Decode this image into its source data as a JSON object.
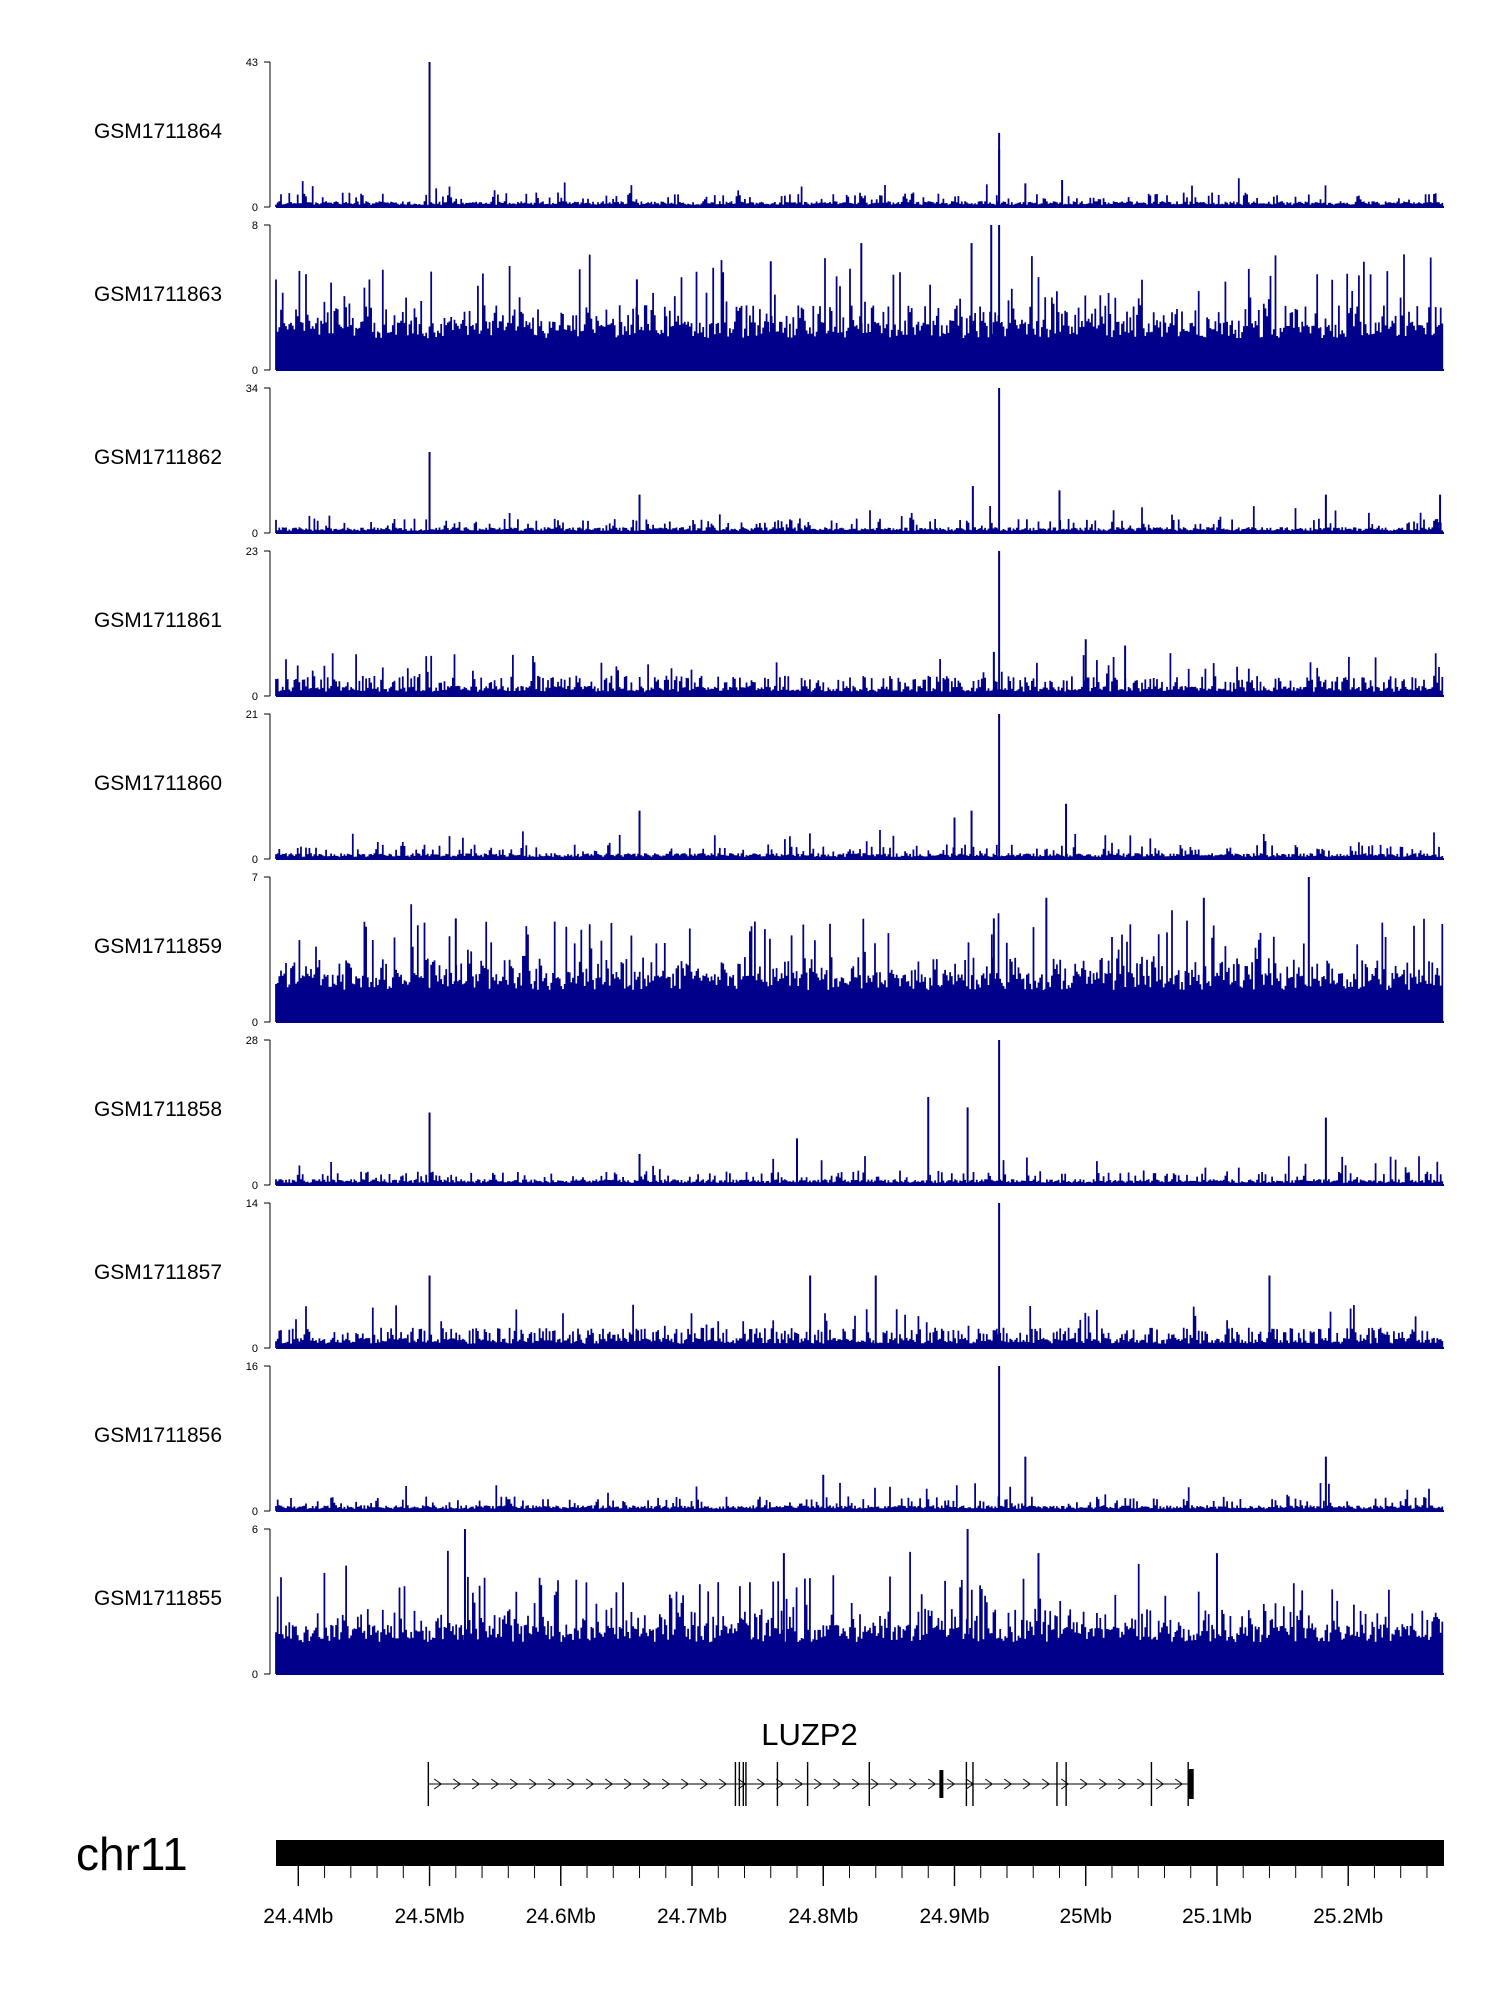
{
  "chart_data": {
    "type": "bar",
    "chromosome": "chr11",
    "region_start_mb": 24.383,
    "region_end_mb": 25.273,
    "genomic_axis": {
      "ticks": [
        {
          "pos": 24.4,
          "label": "24.4Mb"
        },
        {
          "pos": 24.5,
          "label": "24.5Mb"
        },
        {
          "pos": 24.6,
          "label": "24.6Mb"
        },
        {
          "pos": 24.7,
          "label": "24.7Mb"
        },
        {
          "pos": 24.8,
          "label": "24.8Mb"
        },
        {
          "pos": 24.9,
          "label": "24.9Mb"
        },
        {
          "pos": 25.0,
          "label": "25Mb"
        },
        {
          "pos": 25.1,
          "label": "25.1Mb"
        },
        {
          "pos": 25.2,
          "label": "25.2Mb"
        }
      ],
      "minor_tick_step_mb": 0.02
    },
    "tracks": [
      {
        "name": "GSM1711864",
        "ymin": 0,
        "ymax": 43,
        "ymin_label": "0",
        "ymax_label": "43",
        "profile": "sparse",
        "peaks": [
          {
            "pos": 24.5,
            "value": 43
          },
          {
            "pos": 24.934,
            "value": 22
          },
          {
            "pos": 24.934,
            "value": 17
          },
          {
            "pos": 24.982,
            "value": 8
          },
          {
            "pos": 24.954,
            "value": 7
          }
        ]
      },
      {
        "name": "GSM1711863",
        "ymin": 0,
        "ymax": 8,
        "ymin_label": "0",
        "ymax_label": "8",
        "profile": "dense",
        "peaks": [
          {
            "pos": 24.928,
            "value": 8
          },
          {
            "pos": 24.934,
            "value": 8
          },
          {
            "pos": 24.829,
            "value": 7
          },
          {
            "pos": 24.76,
            "value": 6
          },
          {
            "pos": 24.913,
            "value": 7
          },
          {
            "pos": 24.658,
            "value": 5
          }
        ]
      },
      {
        "name": "GSM1711862",
        "ymin": 0,
        "ymax": 34,
        "ymin_label": "0",
        "ymax_label": "34",
        "profile": "sparse",
        "peaks": [
          {
            "pos": 24.5,
            "value": 19
          },
          {
            "pos": 24.934,
            "value": 34
          },
          {
            "pos": 24.914,
            "value": 11
          },
          {
            "pos": 24.98,
            "value": 10
          },
          {
            "pos": 24.66,
            "value": 9
          },
          {
            "pos": 25.183,
            "value": 9
          },
          {
            "pos": 25.27,
            "value": 9
          }
        ]
      },
      {
        "name": "GSM1711861",
        "ymin": 0,
        "ymax": 23,
        "ymin_label": "0",
        "ymax_label": "23",
        "profile": "medium",
        "peaks": [
          {
            "pos": 24.934,
            "value": 23
          },
          {
            "pos": 25.0,
            "value": 9
          },
          {
            "pos": 25.03,
            "value": 8
          },
          {
            "pos": 24.93,
            "value": 7
          }
        ]
      },
      {
        "name": "GSM1711860",
        "ymin": 0,
        "ymax": 21,
        "ymin_label": "0",
        "ymax_label": "21",
        "profile": "sparse",
        "peaks": [
          {
            "pos": 24.934,
            "value": 21
          },
          {
            "pos": 24.985,
            "value": 8
          },
          {
            "pos": 24.66,
            "value": 7
          },
          {
            "pos": 24.913,
            "value": 7
          },
          {
            "pos": 24.9,
            "value": 6
          }
        ]
      },
      {
        "name": "GSM1711859",
        "ymin": 0,
        "ymax": 7,
        "ymin_label": "0",
        "ymax_label": "7",
        "profile": "dense",
        "peaks": [
          {
            "pos": 25.17,
            "value": 7
          },
          {
            "pos": 24.97,
            "value": 6
          },
          {
            "pos": 25.09,
            "value": 6
          },
          {
            "pos": 24.93,
            "value": 5
          },
          {
            "pos": 24.52,
            "value": 5
          }
        ]
      },
      {
        "name": "GSM1711858",
        "ymin": 0,
        "ymax": 28,
        "ymin_label": "0",
        "ymax_label": "28",
        "profile": "sparse",
        "peaks": [
          {
            "pos": 24.5,
            "value": 14
          },
          {
            "pos": 24.934,
            "value": 28
          },
          {
            "pos": 24.88,
            "value": 17
          },
          {
            "pos": 24.91,
            "value": 15
          },
          {
            "pos": 24.78,
            "value": 9
          },
          {
            "pos": 25.183,
            "value": 13
          },
          {
            "pos": 24.66,
            "value": 6
          }
        ]
      },
      {
        "name": "GSM1711857",
        "ymin": 0,
        "ymax": 14,
        "ymin_label": "0",
        "ymax_label": "14",
        "profile": "medium",
        "peaks": [
          {
            "pos": 24.934,
            "value": 14
          },
          {
            "pos": 24.5,
            "value": 7
          },
          {
            "pos": 24.79,
            "value": 7
          },
          {
            "pos": 24.84,
            "value": 7
          },
          {
            "pos": 25.14,
            "value": 7
          }
        ]
      },
      {
        "name": "GSM1711856",
        "ymin": 0,
        "ymax": 16,
        "ymin_label": "0",
        "ymax_label": "16",
        "profile": "sparse",
        "peaks": [
          {
            "pos": 24.934,
            "value": 16
          },
          {
            "pos": 25.183,
            "value": 6
          },
          {
            "pos": 24.954,
            "value": 6
          },
          {
            "pos": 24.8,
            "value": 4
          }
        ]
      },
      {
        "name": "GSM1711855",
        "ymin": 0,
        "ymax": 6,
        "ymin_label": "0",
        "ymax_label": "6",
        "profile": "dense",
        "peaks": [
          {
            "pos": 24.527,
            "value": 6
          },
          {
            "pos": 24.91,
            "value": 6
          },
          {
            "pos": 24.77,
            "value": 5
          },
          {
            "pos": 24.964,
            "value": 5
          },
          {
            "pos": 25.1,
            "value": 5
          }
        ]
      }
    ],
    "gene": {
      "name": "LUZP2",
      "strand": "+",
      "start_mb": 24.499,
      "end_mb": 25.08,
      "exons_mb": [
        24.499,
        24.733,
        24.736,
        24.739,
        24.741,
        24.765,
        24.788,
        24.835,
        24.89,
        24.909,
        24.914,
        24.978,
        24.985,
        25.05,
        25.078,
        25.08
      ]
    }
  },
  "colors": {
    "signal": "#00008b",
    "axis": "#000000",
    "chromosome_bar": "#000000"
  }
}
